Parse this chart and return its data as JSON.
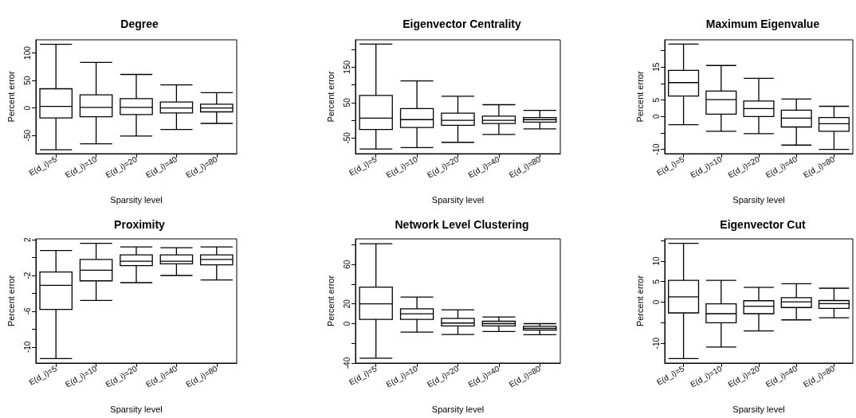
{
  "chart_data": [
    {
      "type": "box",
      "title": "Degree",
      "xlabel": "Sparsity level",
      "ylabel": "Percent error",
      "categories": [
        "E(d_i)=5",
        "E(d_i)=10",
        "E(d_i)=20",
        "E(d_i)=40",
        "E(d_i)=80"
      ],
      "ylim": [
        -83,
        124
      ],
      "yticks": [
        -50,
        0,
        50,
        100
      ],
      "boxes": [
        {
          "low": -76,
          "q1": -18,
          "median": 3,
          "q3": 35,
          "high": 116
        },
        {
          "low": -65,
          "q1": -16,
          "median": 1,
          "q3": 24,
          "high": 83
        },
        {
          "low": -51,
          "q1": -12,
          "median": 1,
          "q3": 17,
          "high": 61
        },
        {
          "low": -39,
          "q1": -9,
          "median": 0,
          "q3": 11,
          "high": 42
        },
        {
          "low": -28,
          "q1": -7,
          "median": 0,
          "q3": 7,
          "high": 28
        }
      ]
    },
    {
      "type": "box",
      "title": "Eigenvector Centrality",
      "xlabel": "Sparsity level",
      "ylabel": "Percent error",
      "categories": [
        "E(d_i)=5",
        "E(d_i)=10",
        "E(d_i)=20",
        "E(d_i)=40",
        "E(d_i)=80"
      ],
      "ylim": [
        -94,
        227
      ],
      "yticks": [
        -50,
        {
          "value": 0,
          "label": null
        },
        50,
        {
          "value": 100,
          "label": null
        },
        150,
        {
          "value": 200,
          "label": null
        }
      ],
      "boxes": [
        {
          "low": -81,
          "q1": -26,
          "median": 6,
          "q3": 70,
          "high": 215
        },
        {
          "low": -77,
          "q1": -20,
          "median": 2,
          "q3": 33,
          "high": 111
        },
        {
          "low": -62,
          "q1": -14,
          "median": 0,
          "q3": 20,
          "high": 68
        },
        {
          "low": -40,
          "q1": -9,
          "median": 0,
          "q3": 12,
          "high": 44
        },
        {
          "low": -24,
          "q1": -5,
          "median": 2,
          "q3": 8,
          "high": 28
        }
      ]
    },
    {
      "type": "box",
      "title": "Maximum Eigenvalue",
      "xlabel": "Sparsity level",
      "ylabel": "Percent error",
      "categories": [
        "E(d_i)=5",
        "E(d_i)=10",
        "E(d_i)=20",
        "E(d_i)=40",
        "E(d_i)=80"
      ],
      "ylim": [
        -11.3,
        23.3
      ],
      "yticks": [
        -10,
        {
          "value": -5,
          "label": null
        },
        0,
        5,
        {
          "value": 10,
          "label": null
        },
        15,
        {
          "value": 20,
          "label": null
        }
      ],
      "boxes": [
        {
          "low": -2.5,
          "q1": 6.2,
          "median": 10.3,
          "q3": 14,
          "high": 22
        },
        {
          "low": -4.5,
          "q1": 0.7,
          "median": 5.1,
          "q3": 7.7,
          "high": 15.5
        },
        {
          "low": -5.2,
          "q1": 0,
          "median": 2.4,
          "q3": 4.7,
          "high": 11.6
        },
        {
          "low": -8.7,
          "q1": -3.2,
          "median": -0.5,
          "q3": 1.9,
          "high": 5.3
        },
        {
          "low": -10,
          "q1": -4.5,
          "median": -2.2,
          "q3": -0.3,
          "high": 3.1
        }
      ]
    },
    {
      "type": "box",
      "title": "Proximity",
      "xlabel": "Sparsity level",
      "ylabel": "Percent error",
      "categories": [
        "E(d_i)=5",
        "E(d_i)=10",
        "E(d_i)=20",
        "E(d_i)=40",
        "E(d_i)=80"
      ],
      "ylim": [
        -11.8,
        2.1
      ],
      "yticks": [
        -10,
        {
          "value": -8,
          "label": null
        },
        -6,
        {
          "value": -4,
          "label": null
        },
        -2,
        {
          "value": 0,
          "label": null
        },
        2
      ],
      "boxes": [
        {
          "low": -11.3,
          "q1": -5.8,
          "median": -3.1,
          "q3": -1.6,
          "high": 0.8
        },
        {
          "low": -4.8,
          "q1": -2.6,
          "median": -1.4,
          "q3": -0.2,
          "high": 1.6
        },
        {
          "low": -2.8,
          "q1": -0.9,
          "median": -0.4,
          "q3": 0.3,
          "high": 1.2
        },
        {
          "low": -2,
          "q1": -0.7,
          "median": -0.4,
          "q3": 0.3,
          "high": 1.1
        },
        {
          "low": -2.5,
          "q1": -0.8,
          "median": -0.2,
          "q3": 0.3,
          "high": 1.2
        }
      ]
    },
    {
      "type": "box",
      "title": "Network Level Clustering",
      "xlabel": "Sparsity level",
      "ylabel": "Percent error",
      "categories": [
        "E(d_i)=5",
        "E(d_i)=10",
        "E(d_i)=20",
        "E(d_i)=40",
        "E(d_i)=80"
      ],
      "ylim": [
        -40,
        86
      ],
      "yticks": [
        -40,
        {
          "value": -20,
          "label": null
        },
        0,
        20,
        {
          "value": 40,
          "label": null
        },
        60,
        {
          "value": 80,
          "label": null
        }
      ],
      "boxes": [
        {
          "low": -35,
          "q1": 4.4,
          "median": 20,
          "q3": 37,
          "high": 81
        },
        {
          "low": -8.6,
          "q1": 4.4,
          "median": 10,
          "q3": 15,
          "high": 27
        },
        {
          "low": -11,
          "q1": -2.4,
          "median": 0.6,
          "q3": 5.3,
          "high": 14
        },
        {
          "low": -8,
          "q1": -2.4,
          "median": 0,
          "q3": 2.4,
          "high": 6.8
        },
        {
          "low": -11.2,
          "q1": -6.5,
          "median": -4.7,
          "q3": -2.7,
          "high": 0
        }
      ]
    },
    {
      "type": "box",
      "title": "Eigenvector Cut",
      "xlabel": "Sparsity level",
      "ylabel": "Percent error",
      "categories": [
        "E(d_i)=5",
        "E(d_i)=10",
        "E(d_i)=20",
        "E(d_i)=40",
        "E(d_i)=80"
      ],
      "ylim": [
        -14.8,
        15.4
      ],
      "yticks": [
        -10,
        {
          "value": -5,
          "label": null
        },
        0,
        5,
        10,
        {
          "value": 15,
          "label": null
        }
      ],
      "boxes": [
        {
          "low": -13.7,
          "q1": -2.6,
          "median": 1.3,
          "q3": 5.3,
          "high": 14.3
        },
        {
          "low": -10.9,
          "q1": -5,
          "median": -2.8,
          "q3": -0.4,
          "high": 5.3
        },
        {
          "low": -7,
          "q1": -2.8,
          "median": -1,
          "q3": 0.35,
          "high": 3.6
        },
        {
          "low": -4.3,
          "q1": -1.3,
          "median": 0.1,
          "q3": 1.1,
          "high": 4.5
        },
        {
          "low": -3.8,
          "q1": -1.5,
          "median": -0.35,
          "q3": 0.4,
          "high": 3.4
        }
      ]
    }
  ]
}
